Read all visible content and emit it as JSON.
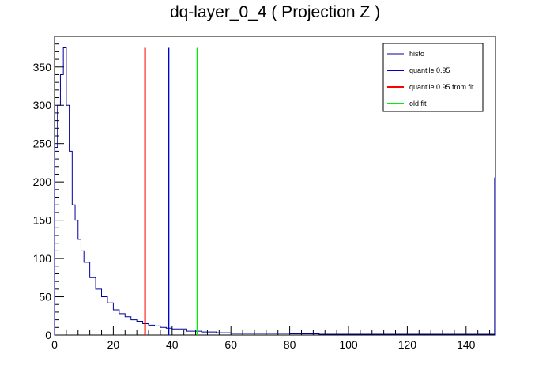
{
  "chart_data": {
    "type": "line",
    "title": "dq-layer_0_4 ( Projection Z )",
    "xlabel": "",
    "ylabel": "",
    "xlim": [
      0,
      150
    ],
    "ylim": [
      0,
      390
    ],
    "x_ticks": [
      0,
      20,
      40,
      60,
      80,
      100,
      120,
      140
    ],
    "y_ticks": [
      0,
      50,
      100,
      150,
      200,
      250,
      300,
      350
    ],
    "grid": false,
    "legend_position": "top-right",
    "series": [
      {
        "name": "histo",
        "color": "#000099",
        "style": "step",
        "x": [
          0,
          1,
          2,
          3,
          4,
          5,
          6,
          7,
          8,
          9,
          10,
          12,
          14,
          16,
          18,
          20,
          22,
          24,
          26,
          28,
          30,
          32,
          34,
          36,
          38,
          40,
          45,
          50,
          55,
          60,
          70,
          80,
          90,
          100,
          110,
          120,
          130,
          140,
          149,
          149.7,
          150
        ],
        "y": [
          245,
          300,
          340,
          375,
          300,
          240,
          170,
          150,
          125,
          110,
          95,
          75,
          60,
          50,
          42,
          33,
          28,
          24,
          20,
          18,
          15,
          13,
          12,
          10,
          9,
          8,
          5,
          4,
          3,
          2,
          2,
          1.5,
          1,
          1,
          1,
          1,
          1,
          1,
          1,
          205,
          0
        ]
      },
      {
        "name": "quantile 0.95",
        "color": "#0000cc",
        "x": 38.8,
        "y_top": 375
      },
      {
        "name": "quantile 0.95 from fit",
        "color": "#ff0000",
        "x": 30.8,
        "y_top": 375
      },
      {
        "name": "old fit",
        "color": "#00ee00",
        "x": 48.6,
        "y_top": 375
      }
    ]
  }
}
